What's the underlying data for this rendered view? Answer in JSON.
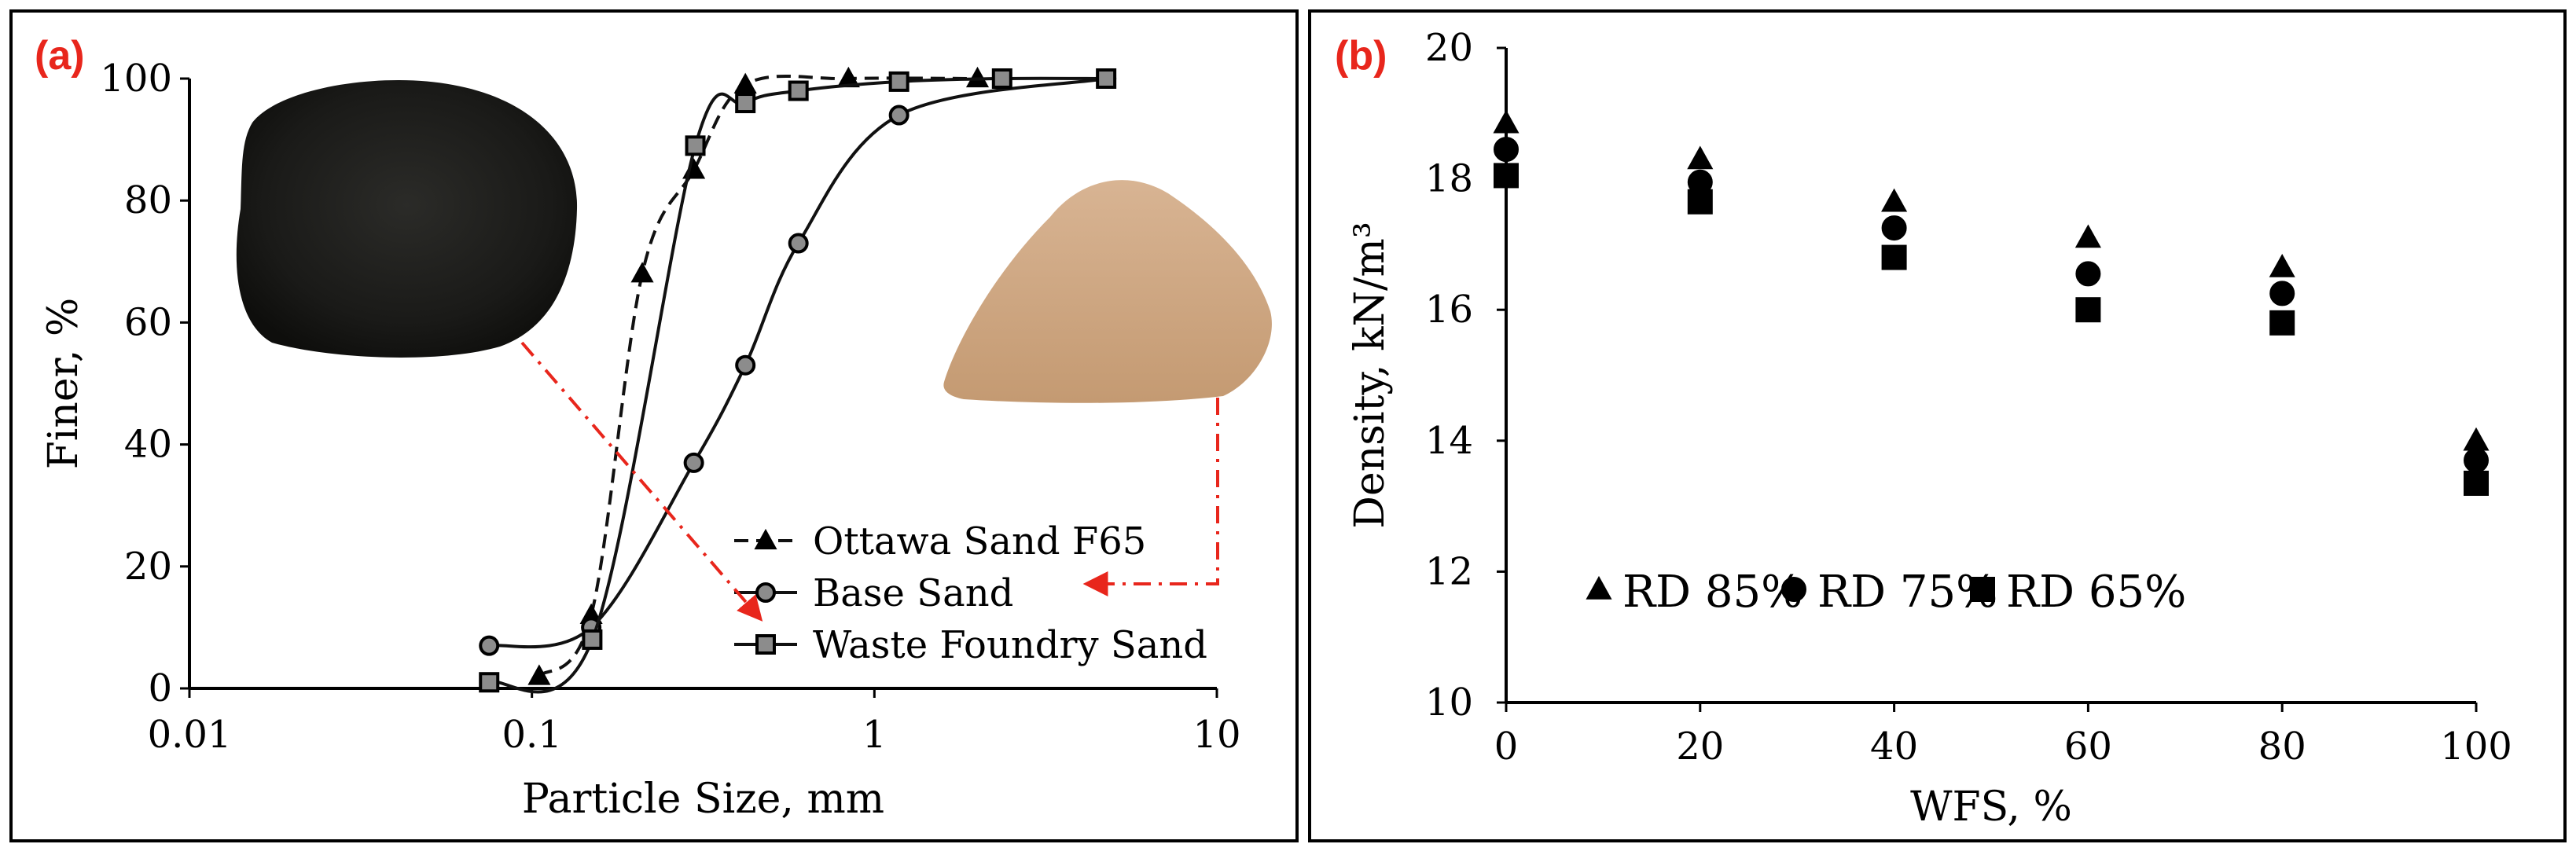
{
  "chart_data": [
    {
      "type": "line",
      "panel_label": "(a)",
      "xlabel": "Particle Size, mm",
      "ylabel": "Finer, %",
      "xscale": "log",
      "xlim": [
        0.01,
        10
      ],
      "ylim": [
        0,
        100
      ],
      "xticks": [
        "0.01",
        "0.1",
        "1",
        "10"
      ],
      "yticks": [
        "0",
        "20",
        "40",
        "60",
        "80",
        "100"
      ],
      "legend_position": "bottom-right",
      "series": [
        {
          "name": "Ottawa Sand F65",
          "marker": "triangle",
          "line_style": "dashed",
          "x": [
            0.105,
            0.149,
            0.21,
            0.297,
            0.42,
            0.84,
            2.0
          ],
          "y": [
            2,
            12,
            68,
            85,
            99,
            100,
            100
          ]
        },
        {
          "name": "Base Sand",
          "marker": "circle",
          "line_style": "solid",
          "x": [
            0.075,
            0.149,
            0.297,
            0.42,
            0.6,
            1.18,
            4.75
          ],
          "y": [
            7,
            10,
            37,
            53,
            73,
            94,
            100
          ]
        },
        {
          "name": "Waste Foundry Sand",
          "marker": "square",
          "line_style": "solid",
          "x": [
            0.075,
            0.15,
            0.3,
            0.42,
            0.6,
            1.18,
            2.36,
            4.75
          ],
          "y": [
            1,
            8,
            89,
            96,
            98,
            99.5,
            100,
            100
          ]
        }
      ]
    },
    {
      "type": "scatter",
      "panel_label": "(b)",
      "xlabel": "WFS, %",
      "ylabel": "Density, kN/m³",
      "xlim": [
        0,
        100
      ],
      "ylim": [
        10,
        20
      ],
      "xticks": [
        "0",
        "20",
        "40",
        "60",
        "80",
        "100"
      ],
      "yticks": [
        "10",
        "12",
        "14",
        "16",
        "18",
        "20"
      ],
      "legend_position": "bottom",
      "series": [
        {
          "name": "RD 85%",
          "marker": "triangle",
          "x": [
            0,
            20,
            40,
            60,
            80,
            100
          ],
          "y": [
            18.85,
            18.3,
            17.65,
            17.1,
            16.65,
            14.0
          ]
        },
        {
          "name": "RD 75%",
          "marker": "circle",
          "x": [
            0,
            20,
            40,
            60,
            80,
            100
          ],
          "y": [
            18.45,
            17.95,
            17.25,
            16.55,
            16.25,
            13.7
          ]
        },
        {
          "name": "RD 65%",
          "marker": "square",
          "x": [
            0,
            20,
            40,
            60,
            80,
            100
          ],
          "y": [
            18.05,
            17.65,
            16.8,
            16.0,
            15.8,
            13.35
          ]
        }
      ]
    }
  ]
}
